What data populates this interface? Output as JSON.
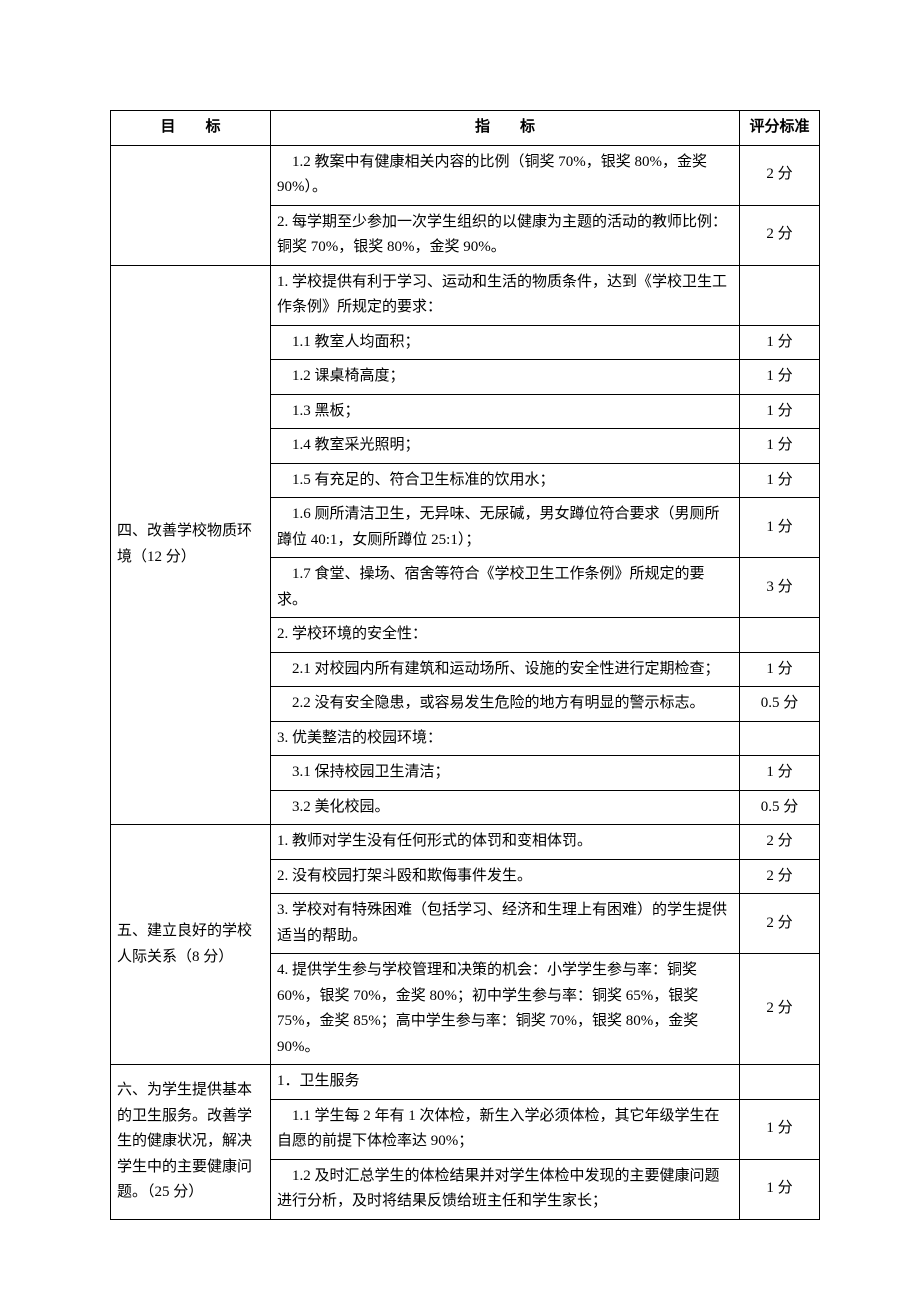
{
  "headers": {
    "target": "目　　标",
    "indicator": "指　　标",
    "score": "评分标准"
  },
  "section_pre": {
    "rows": [
      {
        "indicator": "　1.2 教案中有健康相关内容的比例（铜奖 70%，银奖 80%，金奖 90%）。",
        "score": "2 分"
      },
      {
        "indicator": "2. 每学期至少参加一次学生组织的以健康为主题的活动的教师比例：铜奖 70%，银奖 80%，金奖 90%。",
        "score": "2 分"
      }
    ]
  },
  "section4": {
    "target": "四、改善学校物质环境（12 分）",
    "rows": [
      {
        "indicator": "1. 学校提供有利于学习、运动和生活的物质条件，达到《学校卫生工作条例》所规定的要求：",
        "score": ""
      },
      {
        "indicator": "　1.1 教室人均面积；",
        "score": "1 分"
      },
      {
        "indicator": "　1.2 课桌椅高度；",
        "score": "1 分"
      },
      {
        "indicator": "　1.3 黑板；",
        "score": "1 分"
      },
      {
        "indicator": "　1.4 教室采光照明；",
        "score": "1 分"
      },
      {
        "indicator": "　1.5 有充足的、符合卫生标准的饮用水；",
        "score": "1 分"
      },
      {
        "indicator": "　1.6 厕所清洁卫生，无异味、无尿碱，男女蹲位符合要求（男厕所蹲位 40:1，女厕所蹲位 25:1）；",
        "score": "1 分"
      },
      {
        "indicator": "　1.7 食堂、操场、宿舍等符合《学校卫生工作条例》所规定的要求。",
        "score": "3 分"
      },
      {
        "indicator": "2. 学校环境的安全性：",
        "score": ""
      },
      {
        "indicator": "　2.1 对校园内所有建筑和运动场所、设施的安全性进行定期检查；",
        "score": "1 分"
      },
      {
        "indicator": "　2.2 没有安全隐患，或容易发生危险的地方有明显的警示标志。",
        "score": "0.5 分"
      },
      {
        "indicator": "3. 优美整洁的校园环境：",
        "score": ""
      },
      {
        "indicator": "　3.1 保持校园卫生清洁；",
        "score": "1 分"
      },
      {
        "indicator": "　3.2 美化校园。",
        "score": "0.5 分"
      }
    ]
  },
  "section5": {
    "target": "五、建立良好的学校人际关系（8 分）",
    "rows": [
      {
        "indicator": "1. 教师对学生没有任何形式的体罚和变相体罚。",
        "score": "2 分"
      },
      {
        "indicator": "2. 没有校园打架斗殴和欺侮事件发生。",
        "score": "2 分"
      },
      {
        "indicator": "3. 学校对有特殊困难（包括学习、经济和生理上有困难）的学生提供适当的帮助。",
        "score": "2 分"
      },
      {
        "indicator": "4. 提供学生参与学校管理和决策的机会：小学学生参与率：铜奖 60%，银奖 70%，金奖 80%；初中学生参与率：铜奖 65%，银奖 75%，金奖 85%；高中学生参与率：铜奖 70%，银奖 80%，金奖 90%。",
        "score": "2 分"
      }
    ]
  },
  "section6": {
    "target": "六、为学生提供基本的卫生服务。改善学生的健康状况，解决学生中的主要健康问题。（25 分）",
    "rows": [
      {
        "indicator": "1．卫生服务",
        "score": ""
      },
      {
        "indicator": "　1.1 学生每 2 年有 1 次体检，新生入学必须体检，其它年级学生在自愿的前提下体检率达 90%；",
        "score": "1 分"
      },
      {
        "indicator": "　1.2 及时汇总学生的体检结果并对学生体检中发现的主要健康问题进行分析，及时将结果反馈给班主任和学生家长；",
        "score": "1 分"
      }
    ]
  }
}
